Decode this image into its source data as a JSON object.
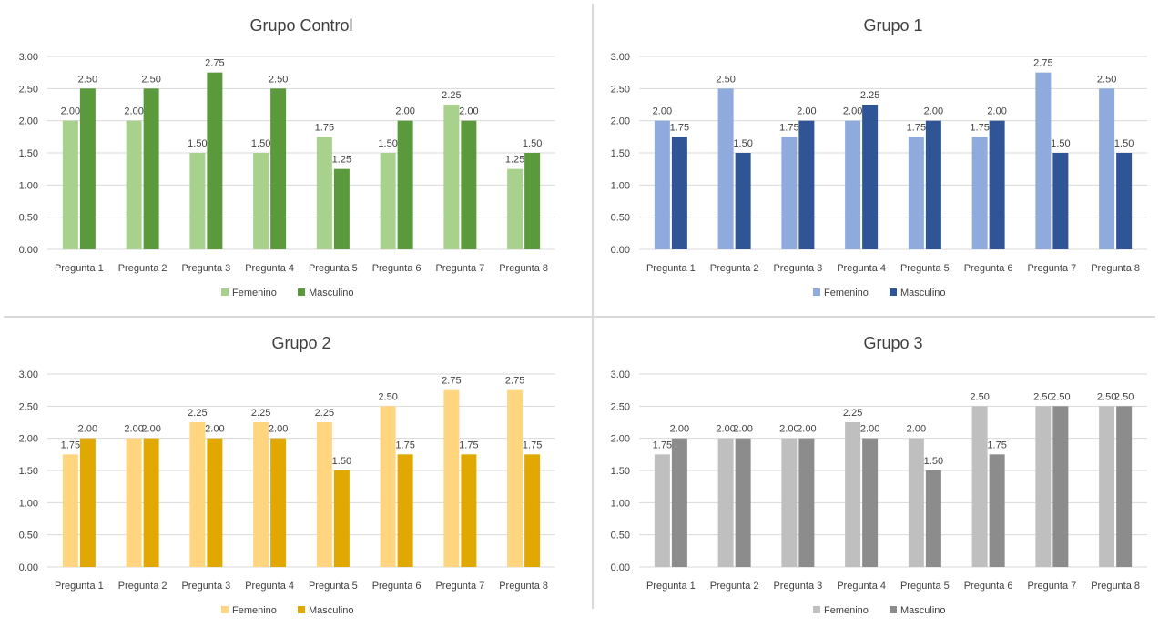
{
  "chart_data": [
    {
      "type": "bar",
      "title": "Grupo Control",
      "categories": [
        "Pregunta 1",
        "Pregunta 2",
        "Pregunta 3",
        "Pregunta 4",
        "Pregunta 5",
        "Pregunta 6",
        "Pregunta 7",
        "Pregunta 8"
      ],
      "series": [
        {
          "name": "Femenino",
          "color": "#a9d18e",
          "values": [
            2.0,
            2.0,
            1.5,
            1.5,
            1.75,
            1.5,
            2.25,
            1.25
          ]
        },
        {
          "name": "Masculino",
          "color": "#5b9a3c",
          "values": [
            2.5,
            2.5,
            2.75,
            2.5,
            1.25,
            2.0,
            2.0,
            1.5
          ]
        }
      ],
      "yticks": [
        "0.00",
        "0.50",
        "1.00",
        "1.50",
        "2.00",
        "2.50",
        "3.00"
      ],
      "ylim": [
        0,
        3
      ],
      "grid": true,
      "legend": "bottom"
    },
    {
      "type": "bar",
      "title": "Grupo 1",
      "categories": [
        "Pregunta 1",
        "Pregunta 2",
        "Pregunta 3",
        "Pregunta 4",
        "Pregunta 5",
        "Pregunta 6",
        "Pregunta 7",
        "Pregunta 8"
      ],
      "series": [
        {
          "name": "Femenino",
          "color": "#8faadc",
          "values": [
            2.0,
            2.5,
            1.75,
            2.0,
            1.75,
            1.75,
            2.75,
            2.5
          ]
        },
        {
          "name": "Masculino",
          "color": "#2f5597",
          "values": [
            1.75,
            1.5,
            2.0,
            2.25,
            2.0,
            2.0,
            1.5,
            1.5
          ]
        }
      ],
      "yticks": [
        "0.00",
        "0.50",
        "1.00",
        "1.50",
        "2.00",
        "2.50",
        "3.00"
      ],
      "ylim": [
        0,
        3
      ],
      "grid": true,
      "legend": "bottom"
    },
    {
      "type": "bar",
      "title": "Grupo 2",
      "categories": [
        "Pregunta 1",
        "Pregunta 2",
        "Pregunta 3",
        "Pregunta 4",
        "Pregunta 5",
        "Pregunta 6",
        "Pregunta 7",
        "Pregunta 8"
      ],
      "series": [
        {
          "name": "Femenino",
          "color": "#ffd580",
          "values": [
            1.75,
            2.0,
            2.25,
            2.25,
            2.25,
            2.5,
            2.75,
            2.75
          ]
        },
        {
          "name": "Masculino",
          "color": "#e0a800",
          "values": [
            2.0,
            2.0,
            2.0,
            2.0,
            1.5,
            1.75,
            1.75,
            1.75
          ]
        }
      ],
      "yticks": [
        "0.00",
        "0.50",
        "1.00",
        "1.50",
        "2.00",
        "2.50",
        "3.00"
      ],
      "ylim": [
        0,
        3
      ],
      "grid": true,
      "legend": "bottom"
    },
    {
      "type": "bar",
      "title": "Grupo 3",
      "categories": [
        "Pregunta 1",
        "Pregunta 2",
        "Pregunta 3",
        "Pregunta 4",
        "Pregunta 5",
        "Pregunta 6",
        "Pregunta 7",
        "Pregunta 8"
      ],
      "series": [
        {
          "name": "Femenino",
          "color": "#bfbfbf",
          "values": [
            1.75,
            2.0,
            2.0,
            2.25,
            2.0,
            2.5,
            2.5,
            2.5
          ]
        },
        {
          "name": "Masculino",
          "color": "#8c8c8c",
          "values": [
            2.0,
            2.0,
            2.0,
            2.0,
            1.5,
            1.75,
            2.5,
            2.5
          ]
        }
      ],
      "yticks": [
        "0.00",
        "0.50",
        "1.00",
        "1.50",
        "2.00",
        "2.50",
        "3.00"
      ],
      "ylim": [
        0,
        3
      ],
      "grid": true,
      "legend": "bottom"
    }
  ]
}
